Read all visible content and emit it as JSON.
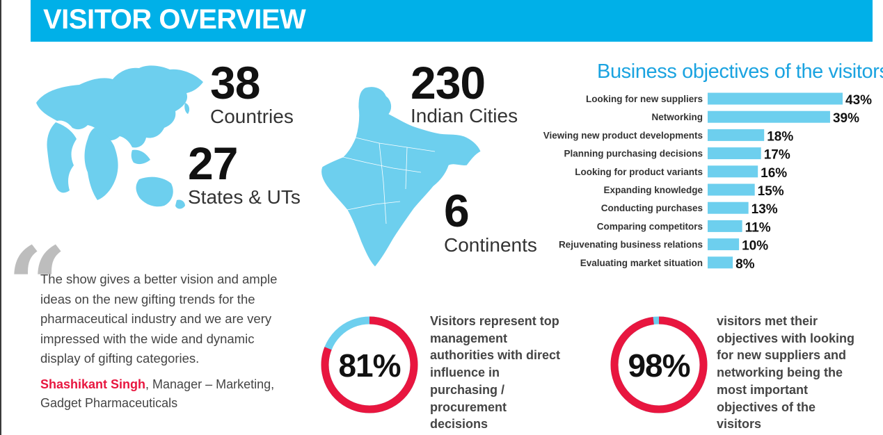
{
  "header": {
    "title": "VISITOR OVERVIEW"
  },
  "stats": [
    {
      "number": "38",
      "label": "Countries"
    },
    {
      "number": "27",
      "label": "States & UTs"
    },
    {
      "number": "230",
      "label": "Indian Cities"
    },
    {
      "number": "6",
      "label": "Continents"
    }
  ],
  "quote": {
    "mark": "“",
    "text": "The show gives a better vision and ample ideas on the new gifting trends for the pharmaceutical industry and we are very impressed with the wide and dynamic display of gifting categories.",
    "author_name": "Shashikant Singh",
    "author_role": ", Manager – Marketing, Gadget Pharmaceuticals"
  },
  "colors": {
    "banner": "#00b0e8",
    "bar": "#6dcfee",
    "map": "#6dcfee",
    "donut_ring": "#e8163f",
    "donut_rest": "#6dcfee",
    "title": "#1aa3e0",
    "author": "#e8163f"
  },
  "chart_data": [
    {
      "type": "bar",
      "orientation": "horizontal",
      "title": "Business objectives of the visitors",
      "categories": [
        "Looking for new suppliers",
        "Networking",
        "Viewing new product developments",
        "Planning purchasing decisions",
        "Looking for product variants",
        "Expanding knowledge",
        "Conducting purchases",
        "Comparing competitors",
        "Rejuvenating business relations",
        "Evaluating market situation"
      ],
      "values": [
        43,
        39,
        18,
        17,
        16,
        15,
        13,
        11,
        10,
        8
      ],
      "value_labels": [
        "43%",
        "39%",
        "18%",
        "17%",
        "16%",
        "15%",
        "13%",
        "11%",
        "10%",
        "8%"
      ],
      "xlim": [
        0,
        43
      ],
      "grid": false
    },
    {
      "type": "pie",
      "style": "donut",
      "value": 81,
      "label": "81%",
      "text": "Visitors represent top management authorities with direct influence in purchasing / procurement decisions"
    },
    {
      "type": "pie",
      "style": "donut",
      "value": 98,
      "label": "98%",
      "text": "visitors met their objectives with looking for new suppliers and networking being the most important objectives of the visitors"
    }
  ]
}
